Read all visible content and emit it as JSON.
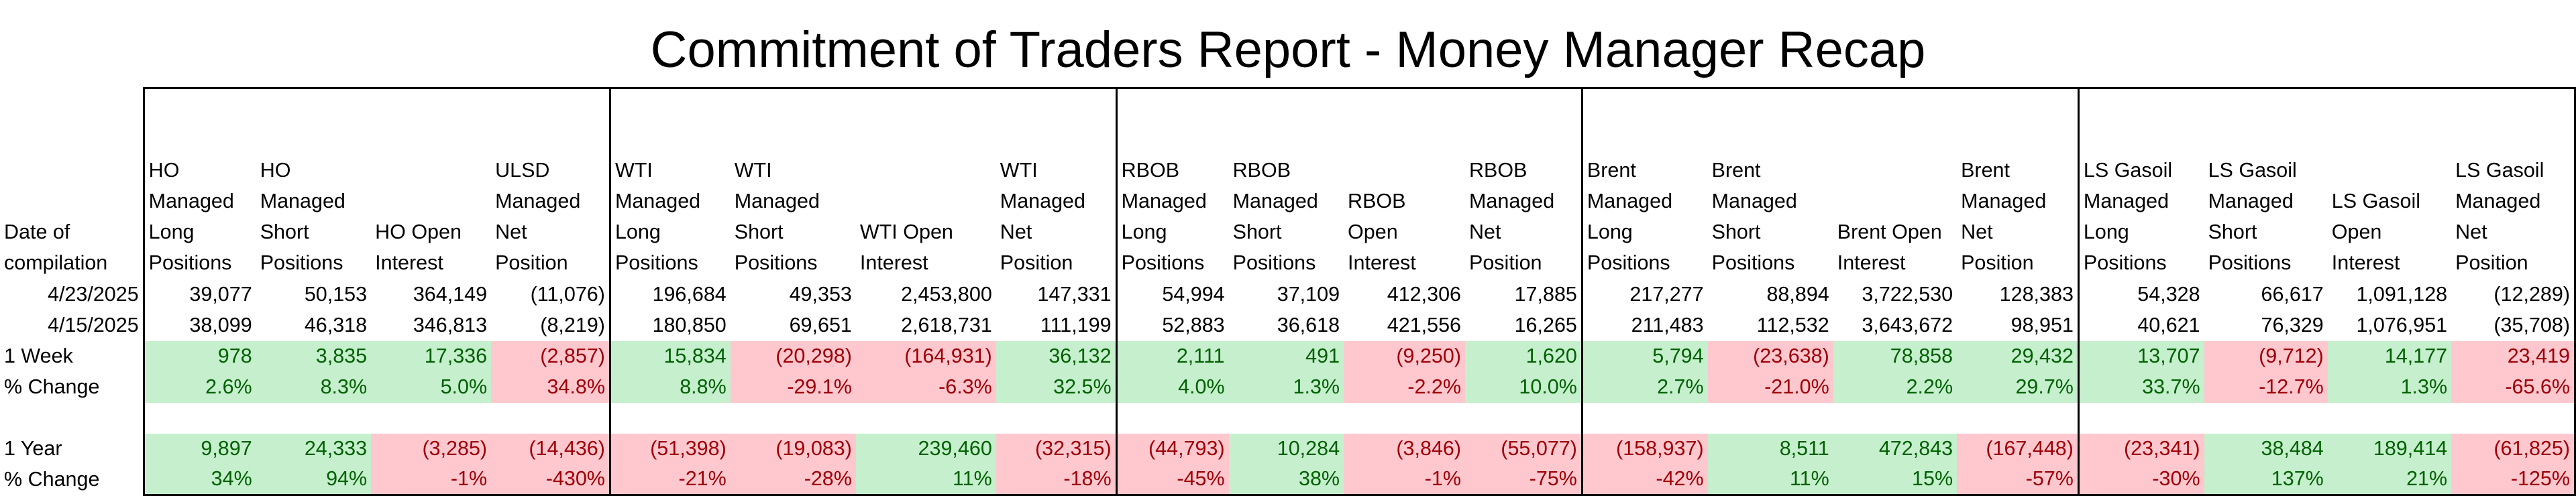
{
  "title": "Commitment of Traders Report - Money Manager Recap",
  "date_header": "Date of compilation",
  "columns": [
    "HO Managed Long Positions",
    "HO Managed Short Positions",
    "HO Open Interest",
    "ULSD Managed Net Position",
    "WTI Managed Long Positions",
    "WTI Managed Short Positions",
    "WTI Open Interest",
    "WTI Managed Net Position",
    "RBOB Managed Long Positions",
    "RBOB Managed Short Positions",
    "RBOB Open Interest",
    "RBOB Managed Net Position",
    "Brent Managed Long Positions",
    "Brent Managed Short Positions",
    "Brent Open Interest",
    "Brent Managed Net Position",
    "LS Gasoil Managed Long Positions",
    "LS Gasoil Managed Short Positions",
    "LS Gasoil Open Interest",
    "LS Gasoil Managed Net Position"
  ],
  "header_lines": [
    [
      "HO",
      "Managed",
      "Long",
      "Positions"
    ],
    [
      "HO",
      "Managed",
      "Short",
      "Positions"
    ],
    [
      "HO Open",
      "Interest"
    ],
    [
      "ULSD",
      "Managed",
      "Net",
      "Position"
    ],
    [
      "WTI",
      "Managed",
      "Long",
      "Positions"
    ],
    [
      "WTI",
      "Managed",
      "Short",
      "Positions"
    ],
    [
      "WTI Open",
      "Interest"
    ],
    [
      "WTI",
      "Managed",
      "Net",
      "Position"
    ],
    [
      "RBOB",
      "Managed",
      "Long",
      "Positions"
    ],
    [
      "RBOB",
      "Managed",
      "Short",
      "Positions"
    ],
    [
      "RBOB Open",
      "Interest"
    ],
    [
      "RBOB",
      "Managed",
      "Net",
      "Position"
    ],
    [
      "Brent",
      "Managed",
      "Long",
      "Positions"
    ],
    [
      "Brent",
      "Managed",
      "Short",
      "Positions"
    ],
    [
      "Brent Open",
      "Interest"
    ],
    [
      "Brent",
      "Managed",
      "Net",
      "Position"
    ],
    [
      "LS Gasoil",
      "Managed",
      "Long",
      "Positions"
    ],
    [
      "LS Gasoil",
      "Managed",
      "Short",
      "Positions"
    ],
    [
      "LS Gasoil",
      "Open",
      "Interest"
    ],
    [
      "LS Gasoil",
      "Managed",
      "Net",
      "Position"
    ]
  ],
  "rows": [
    {
      "date": "4/23/2025",
      "values": [
        "39,077",
        "50,153",
        "364,149",
        "(11,076)",
        "196,684",
        "49,353",
        "2,453,800",
        "147,331",
        "54,994",
        "37,109",
        "412,306",
        "17,885",
        "217,277",
        "88,894",
        "3,722,530",
        "128,383",
        "54,328",
        "66,617",
        "1,091,128",
        "(12,289)"
      ]
    },
    {
      "date": "4/15/2025",
      "values": [
        "38,099",
        "46,318",
        "346,813",
        "(8,219)",
        "180,850",
        "69,651",
        "2,618,731",
        "111,199",
        "52,883",
        "36,618",
        "421,556",
        "16,265",
        "211,483",
        "112,532",
        "3,643,672",
        "98,951",
        "40,621",
        "76,329",
        "1,076,951",
        "(35,708)"
      ]
    }
  ],
  "week": {
    "label": "1 Week",
    "pct_label": "% Change",
    "change": [
      "978",
      "3,835",
      "17,336",
      "(2,857)",
      "15,834",
      "(20,298)",
      "(164,931)",
      "36,132",
      "2,111",
      "491",
      "(9,250)",
      "1,620",
      "5,794",
      "(23,638)",
      "78,858",
      "29,432",
      "13,707",
      "(9,712)",
      "14,177",
      "23,419"
    ],
    "pct": [
      "2.6%",
      "8.3%",
      "5.0%",
      "34.8%",
      "8.8%",
      "-29.1%",
      "-6.3%",
      "32.5%",
      "4.0%",
      "1.3%",
      "-2.2%",
      "10.0%",
      "2.7%",
      "-21.0%",
      "2.2%",
      "29.7%",
      "33.7%",
      "-12.7%",
      "1.3%",
      "-65.6%"
    ],
    "status": [
      "pos",
      "pos",
      "pos",
      "neg",
      "pos",
      "neg",
      "neg",
      "pos",
      "pos",
      "pos",
      "neg",
      "pos",
      "pos",
      "neg",
      "pos",
      "pos",
      "pos",
      "neg",
      "pos",
      "neg"
    ]
  },
  "year": {
    "label": "1 Year",
    "pct_label": "% Change",
    "change": [
      "9,897",
      "24,333",
      "(3,285)",
      "(14,436)",
      "(51,398)",
      "(19,083)",
      "239,460",
      "(32,315)",
      "(44,793)",
      "10,284",
      "(3,846)",
      "(55,077)",
      "(158,937)",
      "8,511",
      "472,843",
      "(167,448)",
      "(23,341)",
      "38,484",
      "189,414",
      "(61,825)"
    ],
    "pct": [
      "34%",
      "94%",
      "-1%",
      "-430%",
      "-21%",
      "-28%",
      "11%",
      "-18%",
      "-45%",
      "38%",
      "-1%",
      "-75%",
      "-42%",
      "11%",
      "15%",
      "-57%",
      "-30%",
      "137%",
      "21%",
      "-125%"
    ],
    "status": [
      "pos",
      "pos",
      "neg",
      "neg",
      "neg",
      "neg",
      "pos",
      "neg",
      "neg",
      "pos",
      "neg",
      "neg",
      "neg",
      "pos",
      "pos",
      "neg",
      "neg",
      "pos",
      "pos",
      "neg"
    ]
  },
  "colors": {
    "positive_fill": "#c6efce",
    "positive_text": "#006100",
    "negative_fill": "#ffc7ce",
    "negative_text": "#9c0006"
  }
}
